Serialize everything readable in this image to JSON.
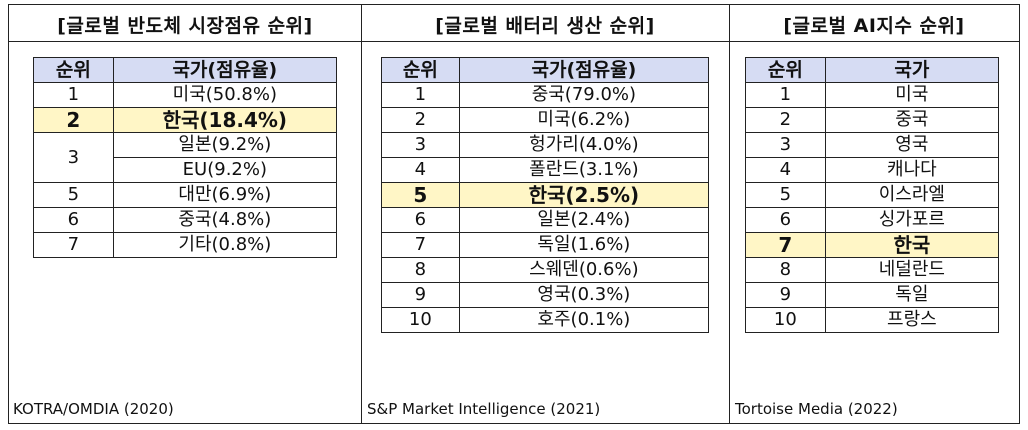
{
  "panels": [
    {
      "title": "[글로벌 반도체 시장점유 순위]",
      "header": [
        "순위",
        "국가(점유율)"
      ],
      "rows": [
        {
          "rank": "1",
          "country": "미국(50.8%)"
        },
        {
          "rank": "2",
          "country": "한국(18.4%)"
        },
        {
          "rank": "3",
          "country": "일본(9.2%)"
        },
        {
          "rank": "",
          "country": "EU(9.2%)"
        },
        {
          "rank": "5",
          "country": "대만(6.9%)"
        },
        {
          "rank": "6",
          "country": "중국(4.8%)"
        },
        {
          "rank": "7",
          "country": "기타(0.8%)"
        }
      ],
      "source": "KOTRA/OMDIA (2020)"
    },
    {
      "title": "[글로벌 배터리 생산 순위]",
      "header": [
        "순위",
        "국가(점유율)"
      ],
      "rows": [
        {
          "rank": "1",
          "country": "중국(79.0%)"
        },
        {
          "rank": "2",
          "country": "미국(6.2%)"
        },
        {
          "rank": "3",
          "country": "헝가리(4.0%)"
        },
        {
          "rank": "4",
          "country": "폴란드(3.1%)"
        },
        {
          "rank": "5",
          "country": "한국(2.5%)"
        },
        {
          "rank": "6",
          "country": "일본(2.4%)"
        },
        {
          "rank": "7",
          "country": "독일(1.6%)"
        },
        {
          "rank": "8",
          "country": "스웨덴(0.6%)"
        },
        {
          "rank": "9",
          "country": "영국(0.3%)"
        },
        {
          "rank": "10",
          "country": "호주(0.1%)"
        }
      ],
      "source": "S&P Market Intelligence (2021)"
    },
    {
      "title": "[글로벌 AI지수 순위]",
      "header": [
        "순위",
        "국가"
      ],
      "rows": [
        {
          "rank": "1",
          "country": "미국"
        },
        {
          "rank": "2",
          "country": "중국"
        },
        {
          "rank": "3",
          "country": "영국"
        },
        {
          "rank": "4",
          "country": "캐나다"
        },
        {
          "rank": "5",
          "country": "이스라엘"
        },
        {
          "rank": "6",
          "country": "싱가포르"
        },
        {
          "rank": "7",
          "country": "한국"
        },
        {
          "rank": "8",
          "country": "네덜란드"
        },
        {
          "rank": "9",
          "country": "독일"
        },
        {
          "rank": "10",
          "country": "프랑스"
        }
      ],
      "source": "Tortoise Media (2022)"
    }
  ],
  "highlight_color": "#fff6c6",
  "header_color": "#d6dcf3"
}
